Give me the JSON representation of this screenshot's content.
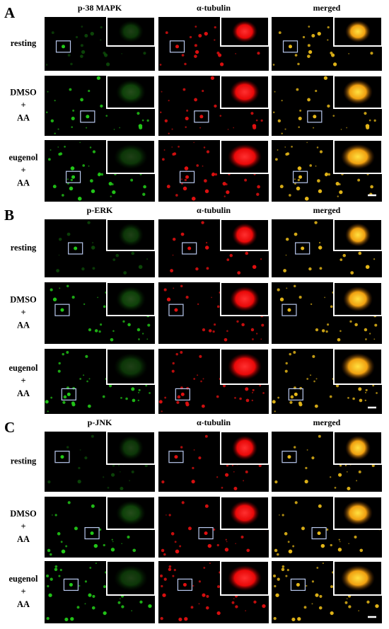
{
  "panels": [
    {
      "letter": "A",
      "columns": [
        "p-38 MAPK",
        "α-tubulin",
        "merged"
      ],
      "rows": [
        [
          "resting"
        ],
        [
          "DMSO",
          "+",
          "AA"
        ],
        [
          "eugenol",
          "+",
          "AA"
        ]
      ]
    },
    {
      "letter": "B",
      "columns": [
        "p-ERK",
        "α-tubulin",
        "merged"
      ],
      "rows": [
        [
          "resting"
        ],
        [
          "DMSO",
          "+",
          "AA"
        ],
        [
          "eugenol",
          "+",
          "AA"
        ]
      ]
    },
    {
      "letter": "C",
      "columns": [
        "p-JNK",
        "α-tubulin",
        "merged"
      ],
      "rows": [
        [
          "resting"
        ],
        [
          "DMSO",
          "+",
          "AA"
        ],
        [
          "eugenol",
          "+",
          "AA"
        ]
      ]
    }
  ]
}
